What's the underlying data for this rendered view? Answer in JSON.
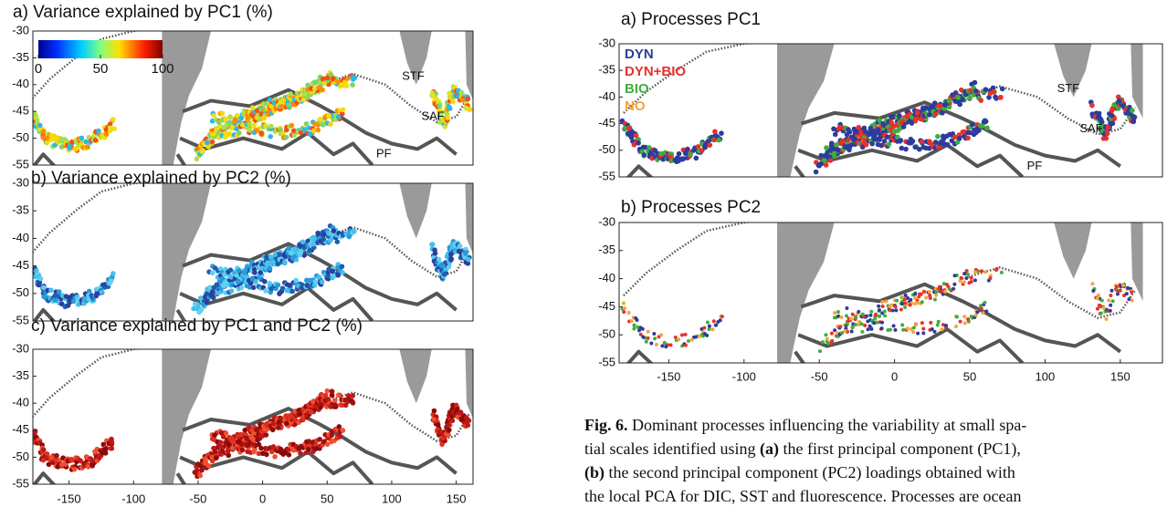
{
  "left_figure": {
    "xlim": [
      -178,
      163
    ],
    "xticks": [
      -150,
      -100,
      -50,
      0,
      50,
      100,
      150
    ],
    "panels": [
      {
        "title": "a) Variance explained by PC1 (%)",
        "ylim": [
          -30,
          -55
        ],
        "yticks": [
          -30,
          -35,
          -40,
          -45,
          -50,
          -55
        ],
        "front_labels": [
          "STF",
          "SAF",
          "PF"
        ]
      },
      {
        "title": "b) Variance explained by PC2 (%)",
        "ylim": [
          -30,
          -55
        ],
        "yticks": [
          -30,
          -35,
          -40,
          -45,
          -50,
          -55
        ]
      },
      {
        "title": "c) Variance explained by PC1 and PC2 (%)",
        "ylim": [
          -30,
          -55
        ],
        "yticks": [
          -30,
          -35,
          -40,
          -45,
          -50,
          -55
        ]
      }
    ],
    "colorbar": {
      "lim": [
        0,
        100
      ],
      "ticks": [
        0,
        50,
        100
      ]
    }
  },
  "right_figure": {
    "xlim": [
      -183,
      178
    ],
    "xticks": [
      -150,
      -100,
      -50,
      0,
      50,
      100,
      150
    ],
    "panels": [
      {
        "title": "a) Processes PC1",
        "ylim": [
          -30,
          -55
        ],
        "yticks": [
          -30,
          -35,
          -40,
          -45,
          -50,
          -55
        ],
        "front_labels": [
          "STF",
          "SAF",
          "PF"
        ],
        "legend": [
          {
            "name": "DYN",
            "color": "#2d3c9c"
          },
          {
            "name": "DYN+BIO",
            "color": "#e8312a"
          },
          {
            "name": "BIO",
            "color": "#3fae3f"
          },
          {
            "name": "NO",
            "color": "#f5a53b"
          }
        ]
      },
      {
        "title": "b) Processes PC2",
        "ylim": [
          -30,
          -55
        ],
        "yticks": [
          -30,
          -35,
          -40,
          -45,
          -50,
          -55
        ]
      }
    ]
  },
  "caption": {
    "lines": [
      [
        {
          "text": "Fig. 6.",
          "bold": true
        },
        {
          "text": " Dominant processes influencing the variability at small spa-"
        }
      ],
      [
        {
          "text": "tial scales identified using "
        },
        {
          "text": "(a)",
          "bold": true
        },
        {
          "text": " the first principal component (PC1),"
        }
      ],
      [
        {
          "text": "(b)",
          "bold": true
        },
        {
          "text": " the second principal component (PC2) loadings obtained with"
        }
      ],
      [
        {
          "text": "the local PCA for DIC, SST and fluorescence. Processes are ocean"
        }
      ]
    ]
  }
}
